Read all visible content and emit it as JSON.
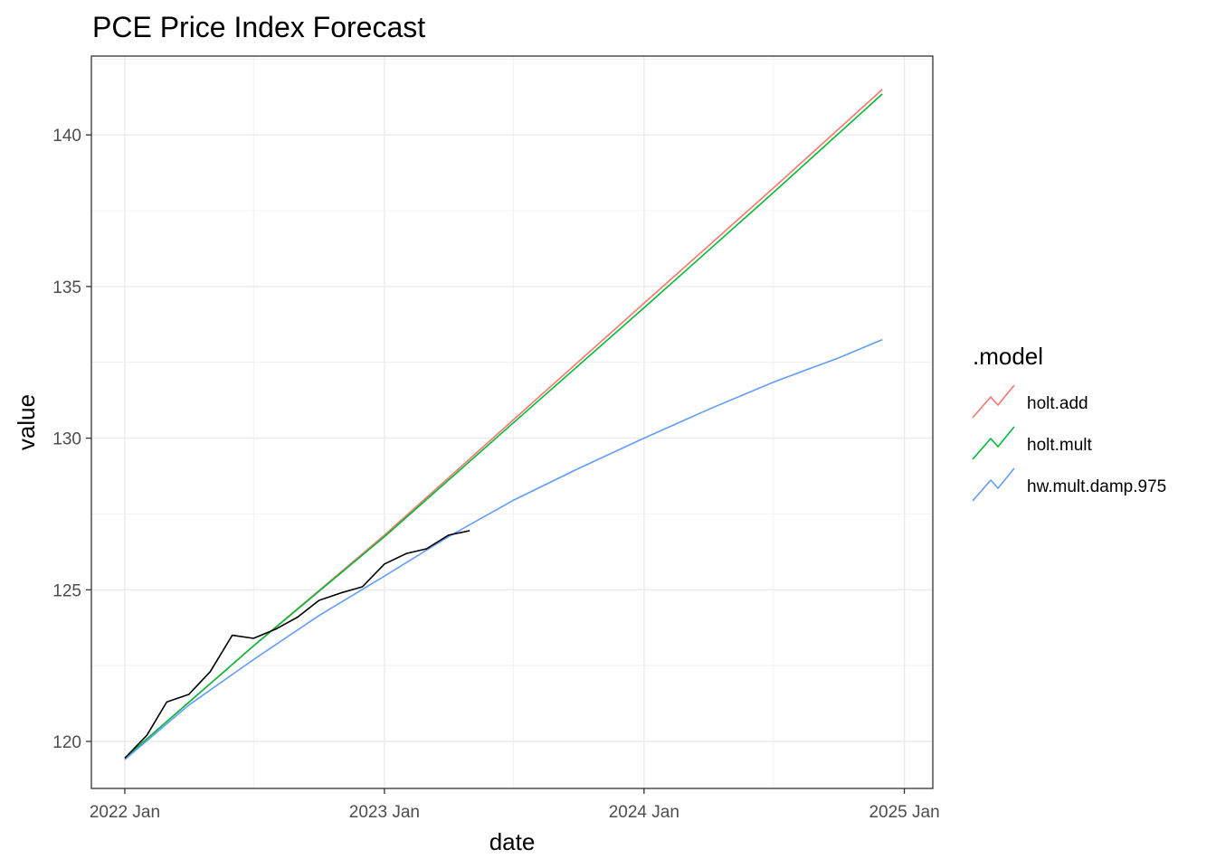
{
  "chart_data": {
    "type": "line",
    "title": "PCE Price Index Forecast",
    "xlabel": "date",
    "ylabel": "value",
    "x_ticks": [
      "2022 Jan",
      "2023 Jan",
      "2024 Jan",
      "2025 Jan"
    ],
    "y_ticks": [
      120,
      125,
      130,
      135,
      140
    ],
    "xlim": [
      "2021-11-15",
      "2025-02-10"
    ],
    "ylim": [
      118.45,
      142.6
    ],
    "grid": true,
    "legend": {
      "title": ".model",
      "position": "right"
    },
    "history": {
      "color": "#000000",
      "x": [
        "2022-01-01",
        "2022-02-01",
        "2022-03-01",
        "2022-04-01",
        "2022-05-01",
        "2022-06-01",
        "2022-07-01",
        "2022-08-01",
        "2022-09-01",
        "2022-10-01",
        "2022-11-01",
        "2022-12-01",
        "2023-01-01",
        "2023-02-01",
        "2023-03-01",
        "2023-04-01",
        "2023-05-01"
      ],
      "values": [
        119.45,
        120.2,
        121.3,
        121.55,
        122.3,
        123.5,
        123.4,
        123.7,
        124.1,
        124.65,
        124.9,
        125.1,
        125.85,
        126.2,
        126.35,
        126.8,
        126.95
      ]
    },
    "series": [
      {
        "name": "holt.add",
        "color": "#F8766D",
        "x": [
          "2022-01-01",
          "2022-07-01",
          "2023-01-01",
          "2023-07-01",
          "2024-01-01",
          "2024-07-01",
          "2024-12-01"
        ],
        "values": [
          119.45,
          123.15,
          126.8,
          130.6,
          134.45,
          138.25,
          141.5
        ]
      },
      {
        "name": "holt.mult",
        "color": "#00BA38",
        "x": [
          "2022-01-01",
          "2022-07-01",
          "2023-01-01",
          "2023-07-01",
          "2024-01-01",
          "2024-07-01",
          "2024-12-01"
        ],
        "values": [
          119.45,
          123.15,
          126.75,
          130.5,
          134.3,
          138.1,
          141.35
        ]
      },
      {
        "name": "hw.mult.damp.975",
        "color": "#619CFF",
        "x": [
          "2022-01-01",
          "2022-04-01",
          "2022-07-01",
          "2022-10-01",
          "2023-01-01",
          "2023-04-01",
          "2023-07-01",
          "2023-10-01",
          "2024-01-01",
          "2024-04-01",
          "2024-07-01",
          "2024-10-01",
          "2024-12-01"
        ],
        "values": [
          119.4,
          121.2,
          122.7,
          124.15,
          125.45,
          126.75,
          127.95,
          129.0,
          130.0,
          130.95,
          131.85,
          132.65,
          133.25
        ]
      }
    ]
  }
}
